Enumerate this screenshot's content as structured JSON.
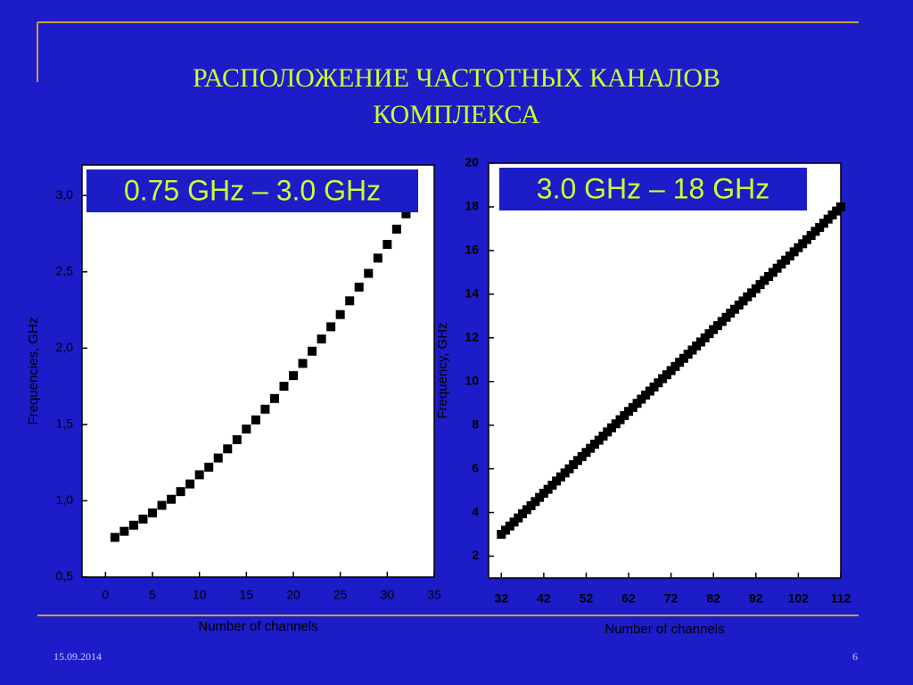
{
  "slide": {
    "title_lines": [
      "РАСПОЛОЖЕНИЕ ЧАСТОТНЫХ КАНАЛОВ",
      "КОМПЛЕКСА"
    ],
    "date": "15.09.2014",
    "page": "6"
  },
  "chart_data": [
    {
      "type": "scatter",
      "title": "0.75 GHz – 3.0 GHz",
      "x_label": "Number of channels",
      "y_label": "Frequencies, GHz",
      "color": "#000000",
      "x": [
        1,
        2,
        3,
        4,
        5,
        6,
        7,
        8,
        9,
        10,
        11,
        12,
        13,
        14,
        15,
        16,
        17,
        18,
        19,
        20,
        21,
        22,
        23,
        24,
        25,
        26,
        27,
        28,
        29,
        30,
        31,
        32
      ],
      "values": [
        0.76,
        0.8,
        0.84,
        0.88,
        0.92,
        0.97,
        1.01,
        1.06,
        1.11,
        1.17,
        1.22,
        1.28,
        1.34,
        1.4,
        1.47,
        1.53,
        1.6,
        1.67,
        1.75,
        1.82,
        1.9,
        1.98,
        2.06,
        2.14,
        2.22,
        2.31,
        2.4,
        2.49,
        2.59,
        2.68,
        2.78,
        2.88
      ],
      "xlim": [
        -2.5,
        35
      ],
      "xticks": [
        0,
        5,
        10,
        15,
        20,
        25,
        30,
        35
      ],
      "ylim": [
        0.5,
        3.2
      ],
      "yticks": [
        {
          "value": 0.5,
          "label": "0,5"
        },
        {
          "value": 1.0,
          "label": "1,0"
        },
        {
          "value": 1.5,
          "label": "1,5"
        },
        {
          "value": 2.0,
          "label": "2,0"
        },
        {
          "value": 2.5,
          "label": "2,5"
        },
        {
          "value": 3.0,
          "label": "3,0"
        }
      ]
    },
    {
      "type": "scatter",
      "title": "3.0 GHz – 18 GHz",
      "x_label": "Number of channels",
      "y_label": "Frequency, GHz",
      "color": "#000000",
      "x": [
        32,
        33,
        34,
        35,
        36,
        37,
        38,
        39,
        40,
        41,
        42,
        43,
        44,
        45,
        46,
        47,
        48,
        49,
        50,
        51,
        52,
        53,
        54,
        55,
        56,
        57,
        58,
        59,
        60,
        61,
        62,
        63,
        64,
        65,
        66,
        67,
        68,
        69,
        70,
        71,
        72,
        73,
        74,
        75,
        76,
        77,
        78,
        79,
        80,
        81,
        82,
        83,
        84,
        85,
        86,
        87,
        88,
        89,
        90,
        91,
        92,
        93,
        94,
        95,
        96,
        97,
        98,
        99,
        100,
        101,
        102,
        103,
        104,
        105,
        106,
        107,
        108,
        109,
        110,
        111,
        112
      ],
      "values": [
        3.0,
        3.19,
        3.38,
        3.56,
        3.75,
        3.94,
        4.13,
        4.31,
        4.5,
        4.69,
        4.88,
        5.06,
        5.25,
        5.44,
        5.63,
        5.81,
        6.0,
        6.19,
        6.38,
        6.56,
        6.75,
        6.94,
        7.13,
        7.31,
        7.5,
        7.69,
        7.88,
        8.06,
        8.25,
        8.44,
        8.63,
        8.81,
        9.0,
        9.19,
        9.38,
        9.56,
        9.75,
        9.94,
        10.13,
        10.31,
        10.5,
        10.69,
        10.88,
        11.06,
        11.25,
        11.44,
        11.63,
        11.81,
        12.0,
        12.19,
        12.38,
        12.56,
        12.75,
        12.94,
        13.13,
        13.31,
        13.5,
        13.69,
        13.88,
        14.06,
        14.25,
        14.44,
        14.63,
        14.81,
        15.0,
        15.19,
        15.38,
        15.56,
        15.75,
        15.94,
        16.13,
        16.31,
        16.5,
        16.69,
        16.88,
        17.06,
        17.25,
        17.44,
        17.63,
        17.81,
        18.0
      ],
      "xlim": [
        29,
        112
      ],
      "xticks": [
        32,
        42,
        52,
        62,
        72,
        82,
        92,
        102,
        112
      ],
      "ylim": [
        1,
        20
      ],
      "yticks": [
        2,
        4,
        6,
        8,
        10,
        12,
        14,
        16,
        18,
        20
      ]
    }
  ]
}
